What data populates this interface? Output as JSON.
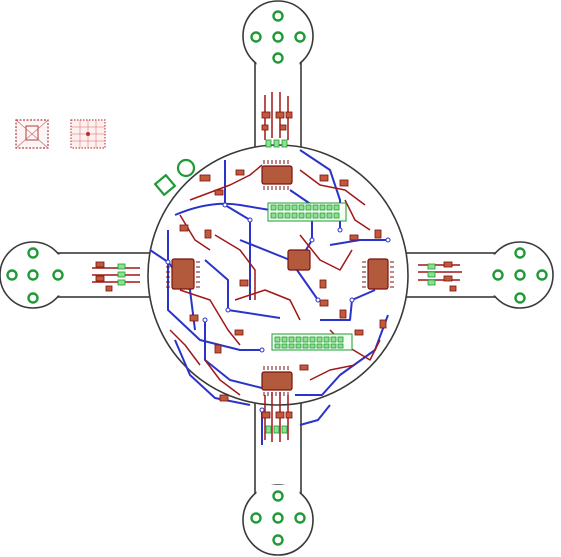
{
  "colors": {
    "background": "#ffffff",
    "board_outline": "#3a3a3a",
    "top_copper": "#a01818",
    "bottom_copper": "#2a34c8",
    "pads": "#1f9a36",
    "pad_fill": "#8ee08e"
  },
  "board": {
    "shape": "quadcopter-frame",
    "arms": [
      "top",
      "right",
      "bottom",
      "left"
    ],
    "motor_mounts": 4,
    "ic_packages": 5,
    "components": [
      "mounting-hole",
      "mounting-hole",
      "header-strip",
      "header-strip"
    ]
  },
  "icons": {
    "thumbnail_left": "board-thumbnail-icon",
    "thumbnail_right": "grid-thumbnail-icon"
  }
}
